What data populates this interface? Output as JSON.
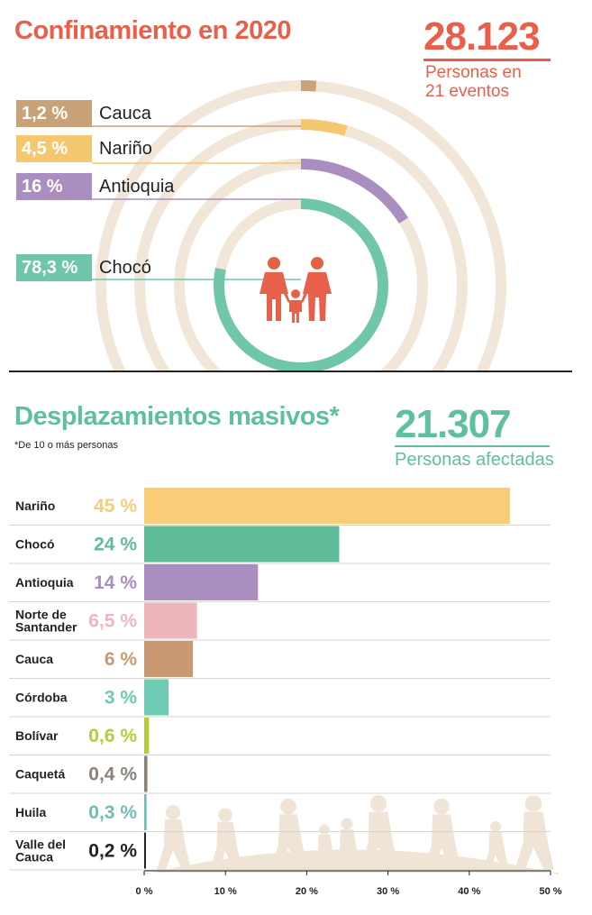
{
  "confinamiento": {
    "title": "Confinamiento en 2020",
    "total": "28.123",
    "subtitle_line1": "Personas en",
    "subtitle_line2": "21 eventos",
    "items": [
      {
        "pct_label": "1,2 %",
        "name": "Cauca",
        "value": 1.2,
        "color": "#C9A27A"
      },
      {
        "pct_label": "4,5 %",
        "name": "Nariño",
        "value": 4.5,
        "color": "#F5C76F"
      },
      {
        "pct_label": "16 %",
        "name": "Antioquia",
        "value": 16,
        "color": "#A98EBF"
      },
      {
        "pct_label": "78,3 %",
        "name": "Chocó",
        "value": 78.3,
        "color": "#6FC6AA"
      }
    ],
    "family_icon": "family-icon",
    "ring_bg": "#F1E6D8"
  },
  "desplazamientos": {
    "title": "Desplazamientos masivos*",
    "note": "*De 10 o más personas",
    "total": "21.307",
    "subtitle": "Personas afectadas",
    "illustration": "walking-people-silhouette"
  },
  "chart_data": {
    "type": "bar",
    "orientation": "horizontal",
    "title": "Desplazamientos masivos*",
    "categories": [
      "Nariño",
      "Chocó",
      "Antioquia",
      "Norte de Santander",
      "Cauca",
      "Córdoba",
      "Bolívar",
      "Caquetá",
      "Huila",
      "Valle del Cauca"
    ],
    "category_lines": [
      [
        "Nariño"
      ],
      [
        "Chocó"
      ],
      [
        "Antioquia"
      ],
      [
        "Norte de",
        "Santander"
      ],
      [
        "Cauca"
      ],
      [
        "Córdoba"
      ],
      [
        "Bolívar"
      ],
      [
        "Caquetá"
      ],
      [
        "Huila"
      ],
      [
        "Valle del",
        "Cauca"
      ]
    ],
    "values": [
      45,
      24,
      14,
      6.5,
      6,
      3,
      0.6,
      0.4,
      0.3,
      0.2
    ],
    "value_labels": [
      "45 %",
      "24 %",
      "14 %",
      "6,5 %",
      "6 %",
      "3 %",
      "0,6 %",
      "0,4 %",
      "0,3 %",
      "0,2 %"
    ],
    "colors": [
      "#F9CC78",
      "#5FBA98",
      "#A98EBF",
      "#EDB6BD",
      "#C99A72",
      "#6CCBB2",
      "#B5CC3A",
      "#8A8279",
      "#6DBFB5",
      "#222222"
    ],
    "xlim": [
      0,
      50
    ],
    "xticks": [
      0,
      10,
      20,
      30,
      40,
      50
    ],
    "xtick_labels": [
      "0 %",
      "10 %",
      "20 %",
      "30 %",
      "40 %",
      "50 %"
    ]
  }
}
